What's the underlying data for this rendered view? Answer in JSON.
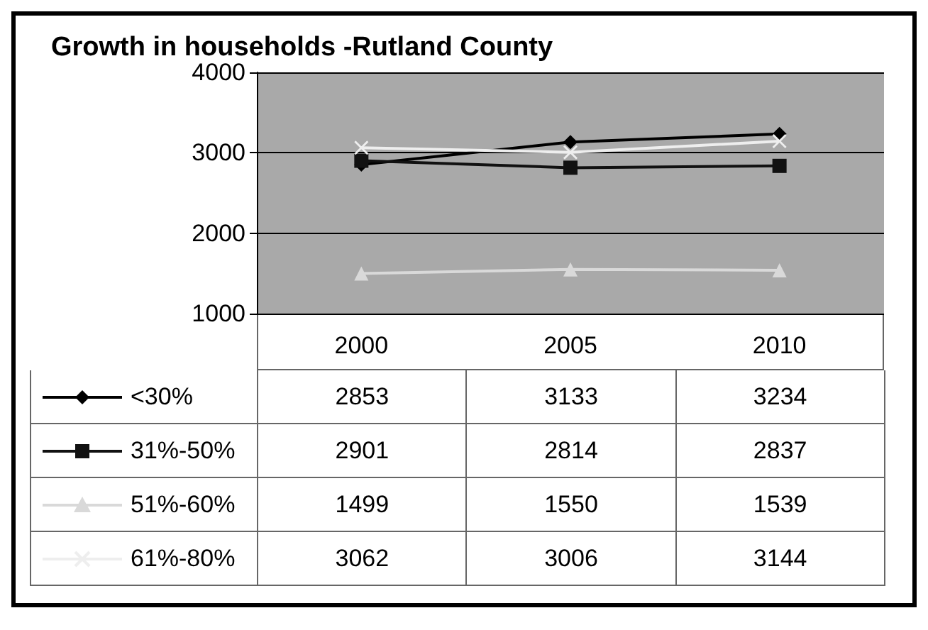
{
  "chart_data": {
    "type": "line",
    "title": "Growth in households -Rutland County",
    "categories": [
      "2000",
      "2005",
      "2010"
    ],
    "series": [
      {
        "name": "<30%",
        "color": "#000000",
        "marker": "diamond",
        "values": [
          2853,
          3133,
          3234
        ]
      },
      {
        "name": "31%-50%",
        "color": "#111111",
        "marker": "square",
        "values": [
          2901,
          2814,
          2837
        ]
      },
      {
        "name": "51%-60%",
        "color": "#d9d9d9",
        "marker": "triangle",
        "values": [
          1499,
          1550,
          1539
        ]
      },
      {
        "name": "61%-80%",
        "color": "#eeeeee",
        "marker": "cross",
        "values": [
          3062,
          3006,
          3144
        ]
      }
    ],
    "ylim": [
      1000,
      4000
    ],
    "yticks": [
      1000,
      2000,
      3000,
      4000
    ],
    "grid": "y",
    "legend": "bottom",
    "data_labels": true
  }
}
